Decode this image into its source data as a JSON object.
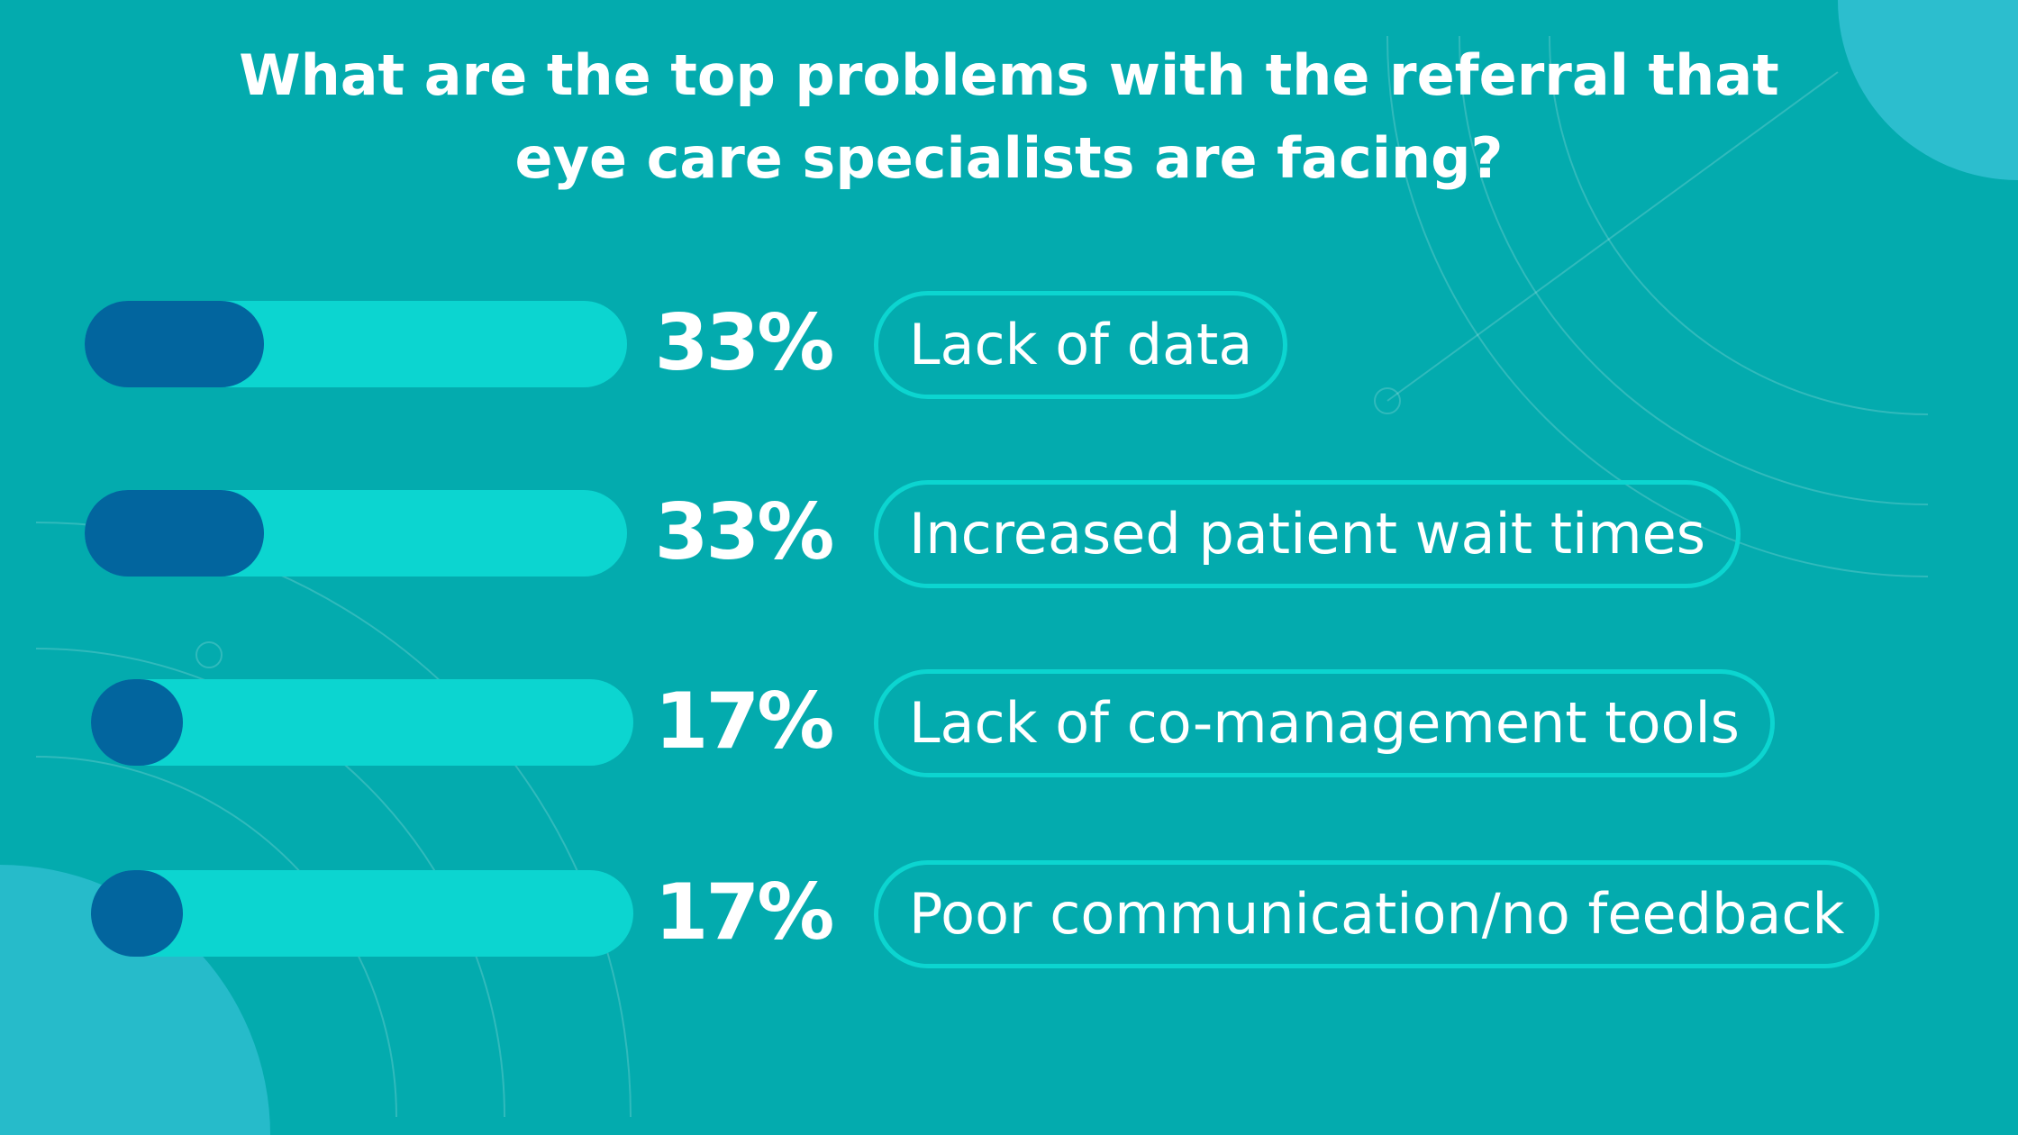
{
  "colors": {
    "background": "#03abae",
    "bar_track": "#0cd5d0",
    "bar_fill": "#02659e",
    "text": "#ffffff"
  },
  "chart_data": {
    "type": "bar",
    "orientation": "horizontal",
    "title": "What are the top problems with the referral that eye care specialists are facing?",
    "title_lines": [
      "What are the top problems with the referral that",
      "eye care specialists are facing?"
    ],
    "categories": [
      "Lack of data",
      "Increased patient wait times",
      "Lack of co-management tools",
      "Poor communication/no feedback"
    ],
    "values": [
      33,
      33,
      17,
      17
    ],
    "labels": [
      "33%",
      "33%",
      "17%",
      "17%"
    ],
    "xlim": [
      0,
      100
    ],
    "grid": false,
    "legend": "none"
  }
}
